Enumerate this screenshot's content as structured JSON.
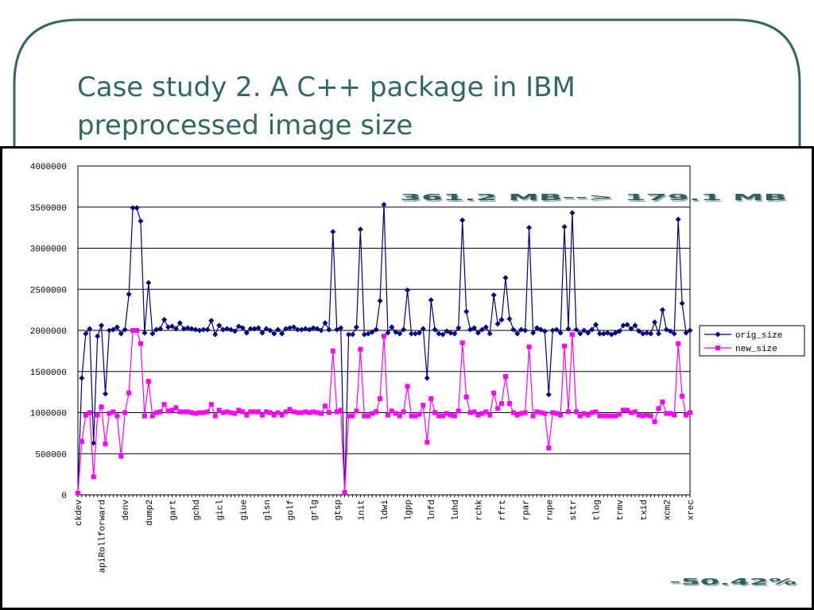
{
  "slide": {
    "title_lines": [
      "Case study 2. A C++ package in IBM",
      "preprocessed image size"
    ]
  },
  "chart_data": {
    "type": "line",
    "annotations": [
      "361.2 MB--> 179.1 MB",
      "-50.42%"
    ],
    "categories": [
      "ckdev",
      null,
      null,
      null,
      null,
      null,
      "apiRollforward",
      null,
      null,
      null,
      null,
      null,
      "denv",
      null,
      null,
      null,
      null,
      null,
      "dump2",
      null,
      null,
      null,
      null,
      null,
      "gart",
      null,
      null,
      null,
      null,
      null,
      "gchd",
      null,
      null,
      null,
      null,
      null,
      "gicl",
      null,
      null,
      null,
      null,
      null,
      "giue",
      null,
      null,
      null,
      null,
      null,
      "glsn",
      null,
      null,
      null,
      null,
      null,
      "golf",
      null,
      null,
      null,
      null,
      null,
      "grlg",
      null,
      null,
      null,
      null,
      null,
      "gtsp",
      null,
      null,
      null,
      null,
      null,
      "init",
      null,
      null,
      null,
      null,
      null,
      "ldwi",
      null,
      null,
      null,
      null,
      null,
      "lgpp",
      null,
      null,
      null,
      null,
      null,
      "lnfd",
      null,
      null,
      null,
      null,
      null,
      "luhd",
      null,
      null,
      null,
      null,
      null,
      "rchk",
      null,
      null,
      null,
      null,
      null,
      "rfrt",
      null,
      null,
      null,
      null,
      null,
      "rpar",
      null,
      null,
      null,
      null,
      null,
      "rupe",
      null,
      null,
      null,
      null,
      null,
      "sttr",
      null,
      null,
      null,
      null,
      null,
      "tlog",
      null,
      null,
      null,
      null,
      null,
      "trmv",
      null,
      null,
      null,
      null,
      null,
      "txid",
      null,
      null,
      null,
      null,
      null,
      "xcm2",
      null,
      null,
      null,
      null,
      null,
      "xrec"
    ],
    "series": [
      {
        "name": "orig_size",
        "color": "#000080",
        "marker": "diamond",
        "values": [
          20000,
          1420000,
          1960000,
          2020000,
          630000,
          1930000,
          2060000,
          1230000,
          2000000,
          2010000,
          2040000,
          1960000,
          2010000,
          2440000,
          3490000,
          3490000,
          3330000,
          1970000,
          2580000,
          1960000,
          2010000,
          2020000,
          2130000,
          2040000,
          2050000,
          2020000,
          2090000,
          2020000,
          2030000,
          2020000,
          2010000,
          2000000,
          2010000,
          2010000,
          2120000,
          1950000,
          2060000,
          2010000,
          2020000,
          2010000,
          1990000,
          2050000,
          2030000,
          1970000,
          2020000,
          2020000,
          2030000,
          1970000,
          2020000,
          2000000,
          1960000,
          2010000,
          1960000,
          2020000,
          2030000,
          2040000,
          2010000,
          2010000,
          2020000,
          2010000,
          2030000,
          2020000,
          2000000,
          2090000,
          2010000,
          3200000,
          2010000,
          2030000,
          20000,
          1950000,
          1950000,
          2040000,
          3230000,
          1950000,
          1960000,
          1980000,
          2010000,
          2360000,
          3530000,
          1970000,
          2040000,
          1980000,
          1960000,
          2010000,
          2490000,
          1960000,
          1960000,
          1970000,
          2020000,
          1420000,
          2370000,
          2010000,
          1960000,
          1950000,
          1990000,
          1970000,
          1960000,
          2030000,
          3340000,
          2230000,
          2010000,
          2030000,
          1970000,
          2010000,
          2040000,
          1960000,
          2430000,
          2080000,
          2130000,
          2640000,
          2140000,
          2010000,
          1960000,
          2010000,
          2000000,
          3250000,
          1970000,
          2030000,
          2010000,
          1990000,
          1220000,
          2000000,
          2010000,
          1970000,
          3260000,
          2020000,
          3430000,
          2010000,
          1960000,
          2000000,
          1970000,
          2010000,
          2070000,
          1960000,
          1960000,
          1970000,
          1950000,
          1970000,
          1990000,
          2060000,
          2070000,
          2020000,
          2060000,
          1990000,
          1960000,
          1970000,
          1960000,
          2100000,
          1960000,
          2250000,
          2010000,
          1990000,
          1960000,
          3350000,
          2330000,
          1970000,
          2000000
        ]
      },
      {
        "name": "new_size",
        "color": "#ff00ff",
        "marker": "square",
        "values": [
          20000,
          650000,
          970000,
          1000000,
          220000,
          970000,
          1070000,
          620000,
          990000,
          1010000,
          960000,
          470000,
          1000000,
          1240000,
          2000000,
          2000000,
          1840000,
          960000,
          1380000,
          960000,
          1000000,
          1010000,
          1100000,
          1020000,
          1030000,
          1060000,
          1010000,
          1010000,
          1010000,
          1000000,
          990000,
          1000000,
          1000000,
          1010000,
          1100000,
          960000,
          1030000,
          1000000,
          1010000,
          1000000,
          990000,
          1030000,
          1010000,
          970000,
          1010000,
          1010000,
          1010000,
          970000,
          1010000,
          1000000,
          970000,
          1000000,
          970000,
          1010000,
          1040000,
          1010000,
          1000000,
          1000000,
          1010000,
          1000000,
          1010000,
          1000000,
          990000,
          1080000,
          1000000,
          1750000,
          1010000,
          1030000,
          30000,
          960000,
          960000,
          1020000,
          1770000,
          960000,
          960000,
          990000,
          1010000,
          1170000,
          1930000,
          970000,
          1020000,
          990000,
          960000,
          1010000,
          1320000,
          960000,
          960000,
          980000,
          1090000,
          640000,
          1170000,
          1000000,
          960000,
          960000,
          990000,
          970000,
          960000,
          1020000,
          1850000,
          1190000,
          1000000,
          1010000,
          970000,
          990000,
          1010000,
          970000,
          1240000,
          1050000,
          1110000,
          1440000,
          1110000,
          1000000,
          970000,
          990000,
          1000000,
          1800000,
          960000,
          1010000,
          1000000,
          990000,
          570000,
          1000000,
          990000,
          970000,
          1810000,
          1010000,
          1950000,
          1010000,
          960000,
          990000,
          970000,
          1000000,
          1010000,
          960000,
          960000,
          960000,
          960000,
          960000,
          980000,
          1030000,
          1030000,
          1000000,
          1010000,
          970000,
          960000,
          970000,
          960000,
          890000,
          1050000,
          1130000,
          990000,
          990000,
          970000,
          1840000,
          1200000,
          970000,
          1000000
        ]
      }
    ],
    "ylim": [
      0,
      4000000
    ],
    "yticks": [
      0,
      500000,
      1000000,
      1500000,
      2000000,
      2500000,
      3000000,
      3500000,
      4000000
    ],
    "grid": true,
    "legend": "right"
  }
}
